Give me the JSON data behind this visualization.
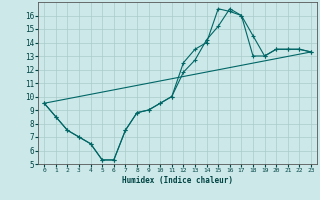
{
  "xlabel": "Humidex (Indice chaleur)",
  "bg_color": "#cde8e8",
  "grid_color": "#aacccc",
  "line_color": "#006666",
  "xlim": [
    -0.5,
    23.5
  ],
  "ylim": [
    5,
    17
  ],
  "xticks": [
    0,
    1,
    2,
    3,
    4,
    5,
    6,
    7,
    8,
    9,
    10,
    11,
    12,
    13,
    14,
    15,
    16,
    17,
    18,
    19,
    20,
    21,
    22,
    23
  ],
  "yticks": [
    5,
    6,
    7,
    8,
    9,
    10,
    11,
    12,
    13,
    14,
    15,
    16
  ],
  "line1_x": [
    0,
    1,
    2,
    3,
    4,
    5,
    6,
    7,
    8,
    9,
    10,
    11,
    12,
    13,
    14,
    15,
    16,
    17,
    18,
    19,
    20,
    21,
    22,
    23
  ],
  "line1_y": [
    9.5,
    8.5,
    7.5,
    7.0,
    6.5,
    5.3,
    5.3,
    7.5,
    8.8,
    9.0,
    9.5,
    10.0,
    12.5,
    13.5,
    14.0,
    16.5,
    16.3,
    16.0,
    14.5,
    13.0,
    13.5,
    13.5,
    13.5,
    13.3
  ],
  "line2_x": [
    0,
    1,
    2,
    3,
    4,
    5,
    6,
    7,
    8,
    9,
    10,
    11,
    12,
    13,
    14,
    15,
    16,
    17,
    18,
    19,
    20,
    21,
    22,
    23
  ],
  "line2_y": [
    9.5,
    8.5,
    7.5,
    7.0,
    6.5,
    5.3,
    5.3,
    7.5,
    8.8,
    9.0,
    9.5,
    10.0,
    11.8,
    12.7,
    14.2,
    15.2,
    16.5,
    16.0,
    13.0,
    13.0,
    13.5,
    13.5,
    13.5,
    13.3
  ],
  "line3_x": [
    0,
    23
  ],
  "line3_y": [
    9.5,
    13.3
  ],
  "xlabel_fontsize": 5.5,
  "tick_fontsize_x": 4.5,
  "tick_fontsize_y": 5.5
}
